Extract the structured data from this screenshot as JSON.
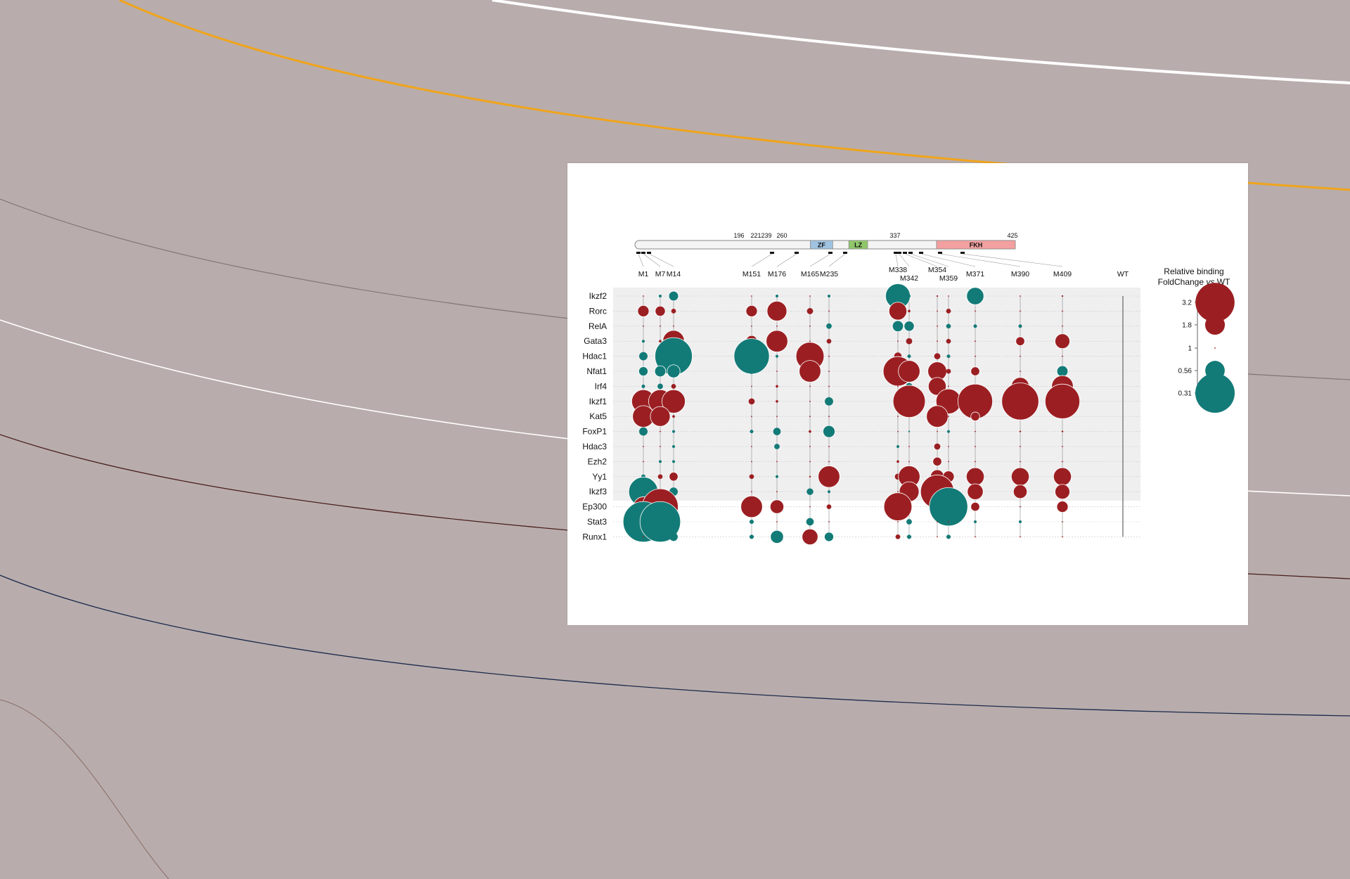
{
  "chart_data": {
    "type": "bubble-matrix",
    "protein": {
      "length_end": 425,
      "domains": [
        {
          "label": "ZF",
          "start": 196,
          "end": 221,
          "color": "#9fc3e1"
        },
        {
          "label": "LZ",
          "start": 239,
          "end": 260,
          "color": "#8fc76a"
        },
        {
          "label": "FKH",
          "start": 337,
          "end": 425,
          "color": "#f2a0a0"
        }
      ],
      "position_ticks": [
        "196",
        "221",
        "239",
        "260",
        "337",
        "425"
      ]
    },
    "mutants": [
      "M1",
      "M7",
      "M14",
      "M151",
      "M176",
      "M165",
      "M235",
      "M338",
      "M342",
      "M354",
      "M359",
      "M371",
      "M390",
      "M409",
      "WT"
    ],
    "rows": [
      "Ikzf2",
      "Rorc",
      "RelA",
      "Gata3",
      "Hdac1",
      "Nfat1",
      "Irf4",
      "Ikzf1",
      "Kat5",
      "FoxP1",
      "Hdac3",
      "Ezh2",
      "Yy1",
      "Ikzf3",
      "Ep300",
      "Stat3",
      "Runx1"
    ],
    "values": [
      [
        1,
        0.92,
        0.75,
        1,
        0.92,
        1,
        0.92,
        0.48,
        0.92,
        1.05,
        1,
        0.6,
        1,
        1.05,
        1
      ],
      [
        1.4,
        1.35,
        1.15,
        1.4,
        1.8,
        1.2,
        1,
        1.7,
        1.08,
        1,
        1.15,
        1,
        1,
        1,
        1
      ],
      [
        1,
        1,
        1,
        1,
        1,
        1,
        0.85,
        0.72,
        0.74,
        1,
        0.87,
        0.9,
        0.9,
        1,
        1
      ],
      [
        0.92,
        1.08,
        1.9,
        1.4,
        1.9,
        1,
        1.15,
        1,
        1.2,
        1,
        1.15,
        1,
        1.3,
        1.55,
        1
      ],
      [
        0.78,
        0.9,
        0.33,
        0.35,
        0.92,
        2.3,
        1,
        1.25,
        0.9,
        1.2,
        0.9,
        1,
        1,
        1,
        1
      ],
      [
        0.76,
        0.72,
        0.68,
        0.85,
        1,
        1.9,
        1,
        2.4,
        1.9,
        1.75,
        1.15,
        1.3,
        1,
        0.72,
        1
      ],
      [
        0.9,
        0.85,
        1.15,
        1,
        1.08,
        1,
        1,
        1,
        0.82,
        1.7,
        1,
        1,
        1.7,
        1.9,
        1
      ],
      [
        2.0,
        2.0,
        2.0,
        1.2,
        1.08,
        1,
        0.78,
        1,
        2.6,
        1,
        2.1,
        2.8,
        3.0,
        2.8,
        1
      ],
      [
        1.9,
        1.8,
        1.08,
        1,
        1,
        1,
        1,
        1,
        1,
        1.9,
        1,
        1.3,
        1,
        1,
        1
      ],
      [
        0.78,
        1,
        0.92,
        0.9,
        0.8,
        1.08,
        0.7,
        1,
        0.95,
        1,
        0.92,
        1,
        1.05,
        1.05,
        1
      ],
      [
        1,
        1,
        0.92,
        1,
        0.85,
        1,
        1,
        0.92,
        1,
        1.2,
        1,
        1,
        1,
        1,
        1
      ],
      [
        1,
        0.92,
        0.92,
        1,
        1,
        1,
        1,
        1.08,
        1,
        1.3,
        1,
        1,
        1,
        1,
        1
      ],
      [
        0.88,
        1.15,
        1.3,
        1.15,
        0.92,
        1.05,
        1.9,
        1.2,
        1.9,
        1.5,
        1.4,
        1.7,
        1.7,
        1.7,
        1
      ],
      [
        0.42,
        0.88,
        0.78,
        1,
        1,
        0.82,
        0.92,
        1,
        1.8,
        2.7,
        1,
        1.6,
        1.5,
        1.55,
        1
      ],
      [
        1.8,
        2.9,
        1,
        1.9,
        1.5,
        1,
        1.15,
        2.3,
        1,
        1.08,
        0.32,
        1.3,
        1,
        1.4,
        1
      ],
      [
        0.3,
        0.3,
        0.92,
        0.88,
        1,
        0.8,
        1,
        1,
        0.85,
        1,
        1,
        0.92,
        0.92,
        1,
        1
      ],
      [
        1,
        0.88,
        0.78,
        0.88,
        0.68,
        1.6,
        0.76,
        1.15,
        0.88,
        1,
        0.88,
        1,
        1,
        1,
        1
      ]
    ],
    "legend": {
      "title_line1": "Relative binding",
      "title_line2_prefix": "FoldChange ",
      "title_line2_italic": "vs",
      "title_line2_suffix": " WT",
      "entries": [
        {
          "label": "3.2",
          "value": 3.2
        },
        {
          "label": "1.8",
          "value": 1.8
        },
        {
          "label": "1",
          "value": 1
        },
        {
          "label": "0.56",
          "value": 0.56
        },
        {
          "label": "0.31",
          "value": 0.31
        }
      ]
    },
    "colors": {
      "up": "#9b1f22",
      "down": "#137b77",
      "row_band": "#f0eff0",
      "bg": "#b8adac"
    }
  }
}
